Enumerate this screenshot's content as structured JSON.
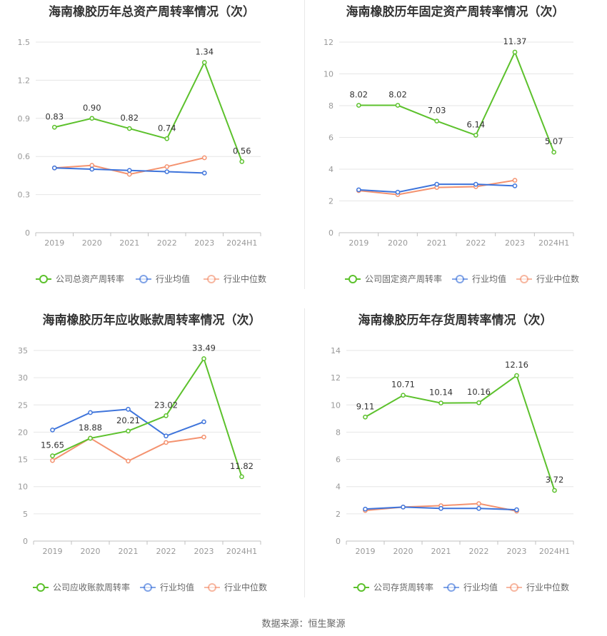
{
  "source": "数据来源：恒生聚源",
  "colors": {
    "company": "#5cc12c",
    "avg": "#3e74db",
    "median": "#f4926f",
    "grid": "#e6e6e6",
    "axis": "#c0c0c0"
  },
  "chart_data": [
    {
      "type": "line",
      "title": "海南橡胶历年总资产周转率情况（次）",
      "categories": [
        "2019",
        "2020",
        "2021",
        "2022",
        "2023",
        "2024H1"
      ],
      "ylim": [
        0,
        1.5
      ],
      "yticks": [
        "0",
        "0.3",
        "0.6",
        "0.9",
        "1.2",
        "1.5"
      ],
      "legend": "bottom",
      "series": [
        {
          "name": "公司总资产周转率",
          "role": "company",
          "values": [
            0.83,
            0.9,
            0.82,
            0.74,
            1.34,
            0.56
          ],
          "labels": [
            "0.83",
            "0.90",
            "0.82",
            "0.74",
            "1.34",
            "0.56"
          ]
        },
        {
          "name": "行业均值",
          "role": "avg",
          "values": [
            0.51,
            0.5,
            0.49,
            0.48,
            0.47,
            null
          ]
        },
        {
          "name": "行业中位数",
          "role": "median",
          "values": [
            0.51,
            0.53,
            0.46,
            0.52,
            0.59,
            null
          ]
        }
      ]
    },
    {
      "type": "line",
      "title": "海南橡胶历年固定资产周转率情况（次）",
      "categories": [
        "2019",
        "2020",
        "2021",
        "2022",
        "2023",
        "2024H1"
      ],
      "ylim": [
        0,
        12
      ],
      "yticks": [
        "0",
        "2",
        "4",
        "6",
        "8",
        "10",
        "12"
      ],
      "legend": "bottom",
      "series": [
        {
          "name": "公司固定资产周转率",
          "role": "company",
          "values": [
            8.02,
            8.02,
            7.03,
            6.14,
            11.37,
            5.07
          ],
          "labels": [
            "8.02",
            "8.02",
            "7.03",
            "6.14",
            "11.37",
            "5.07"
          ]
        },
        {
          "name": "行业均值",
          "role": "avg",
          "values": [
            2.7,
            2.55,
            3.05,
            3.05,
            2.95,
            null
          ]
        },
        {
          "name": "行业中位数",
          "role": "median",
          "values": [
            2.65,
            2.4,
            2.85,
            2.9,
            3.3,
            null
          ]
        }
      ]
    },
    {
      "type": "line",
      "title": "海南橡胶历年应收账款周转率情况（次）",
      "categories": [
        "2019",
        "2020",
        "2021",
        "2022",
        "2023",
        "2024H1"
      ],
      "ylim": [
        0,
        35
      ],
      "yticks": [
        "0",
        "5",
        "10",
        "15",
        "20",
        "25",
        "30",
        "35"
      ],
      "legend": "bottom",
      "series": [
        {
          "name": "公司应收账款周转率",
          "role": "company",
          "values": [
            15.65,
            18.88,
            20.21,
            23.02,
            33.49,
            11.82
          ],
          "labels": [
            "15.65",
            "18.88",
            "20.21",
            "23.02",
            "33.49",
            "11.82"
          ]
        },
        {
          "name": "行业均值",
          "role": "avg",
          "values": [
            20.4,
            23.6,
            24.2,
            19.3,
            21.9,
            null
          ]
        },
        {
          "name": "行业中位数",
          "role": "median",
          "values": [
            14.8,
            18.9,
            14.7,
            18.1,
            19.1,
            null
          ]
        }
      ]
    },
    {
      "type": "line",
      "title": "海南橡胶历年存货周转率情况（次）",
      "categories": [
        "2019",
        "2020",
        "2021",
        "2022",
        "2023",
        "2024H1"
      ],
      "ylim": [
        0,
        14
      ],
      "yticks": [
        "0",
        "2",
        "4",
        "6",
        "8",
        "10",
        "12",
        "14"
      ],
      "legend": "bottom",
      "series": [
        {
          "name": "公司存货周转率",
          "role": "company",
          "values": [
            9.11,
            10.71,
            10.14,
            10.16,
            12.16,
            3.72
          ],
          "labels": [
            "9.11",
            "10.71",
            "10.14",
            "10.16",
            "12.16",
            "3.72"
          ]
        },
        {
          "name": "行业均值",
          "role": "avg",
          "values": [
            2.35,
            2.5,
            2.4,
            2.4,
            2.3,
            null
          ]
        },
        {
          "name": "行业中位数",
          "role": "median",
          "values": [
            2.25,
            2.5,
            2.6,
            2.75,
            2.2,
            null
          ]
        }
      ]
    }
  ]
}
